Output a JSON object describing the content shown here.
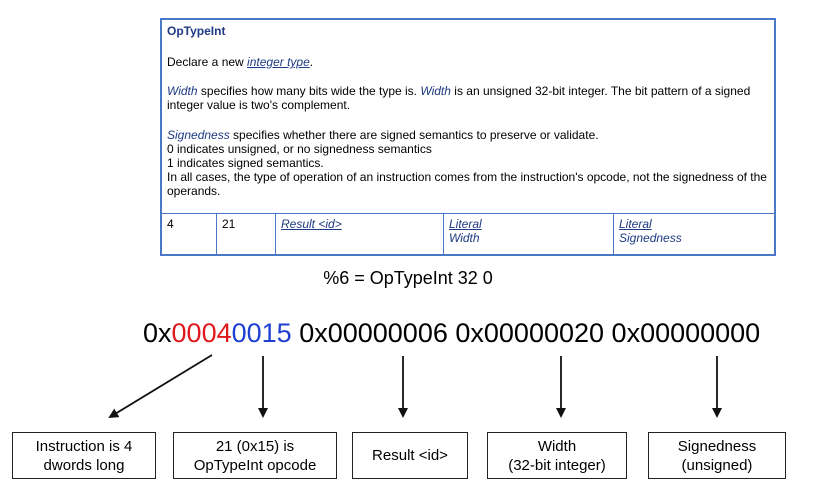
{
  "spec": {
    "title": "OpTypeInt",
    "declare_prefix": "Declare a new ",
    "declare_link": "integer type",
    "declare_suffix": ".",
    "width_term1": "Width",
    "width_text1": " specifies how many bits wide the type is. ",
    "width_term2": "Width",
    "width_text2": " is an unsigned 32-bit integer. The bit pattern of a signed integer value is two's complement.",
    "sign_term": "Signedness",
    "sign_text": " specifies whether there are signed semantics to preserve or validate.",
    "sign_line2": "0 indicates unsigned, or no signedness semantics",
    "sign_line3": "1 indicates signed semantics.",
    "sign_line4": "In all cases, the type of operation of an instruction comes from the instruction's opcode, not the signedness of the operands.",
    "table": {
      "wordcount": "4",
      "opcode": "21",
      "result": "Result <id>",
      "width_1": "Literal",
      "width_2": "Width",
      "sign_1": "Literal",
      "sign_2": "Signedness"
    }
  },
  "instruction": "%6 = OpTypeInt 32 0",
  "hex": {
    "prefix1": "0x",
    "red": "0004",
    "blue": "0015",
    "word2": "0x00000006",
    "word3": "0x00000020",
    "word4": "0x00000000"
  },
  "boxes": {
    "b1_l1": "Instruction is 4",
    "b1_l2": "dwords long",
    "b2_l1": "21 (0x15) is",
    "b2_l2": "OpTypeInt opcode",
    "b3": "Result <id>",
    "b4_l1": "Width",
    "b4_l2": "(32-bit integer)",
    "b5_l1": "Signedness",
    "b5_l2": "(unsigned)"
  },
  "colors": {
    "border": "#4a78c9",
    "red": "#e0191f",
    "blue": "#1f3fd0",
    "term": "#1f3a84"
  }
}
